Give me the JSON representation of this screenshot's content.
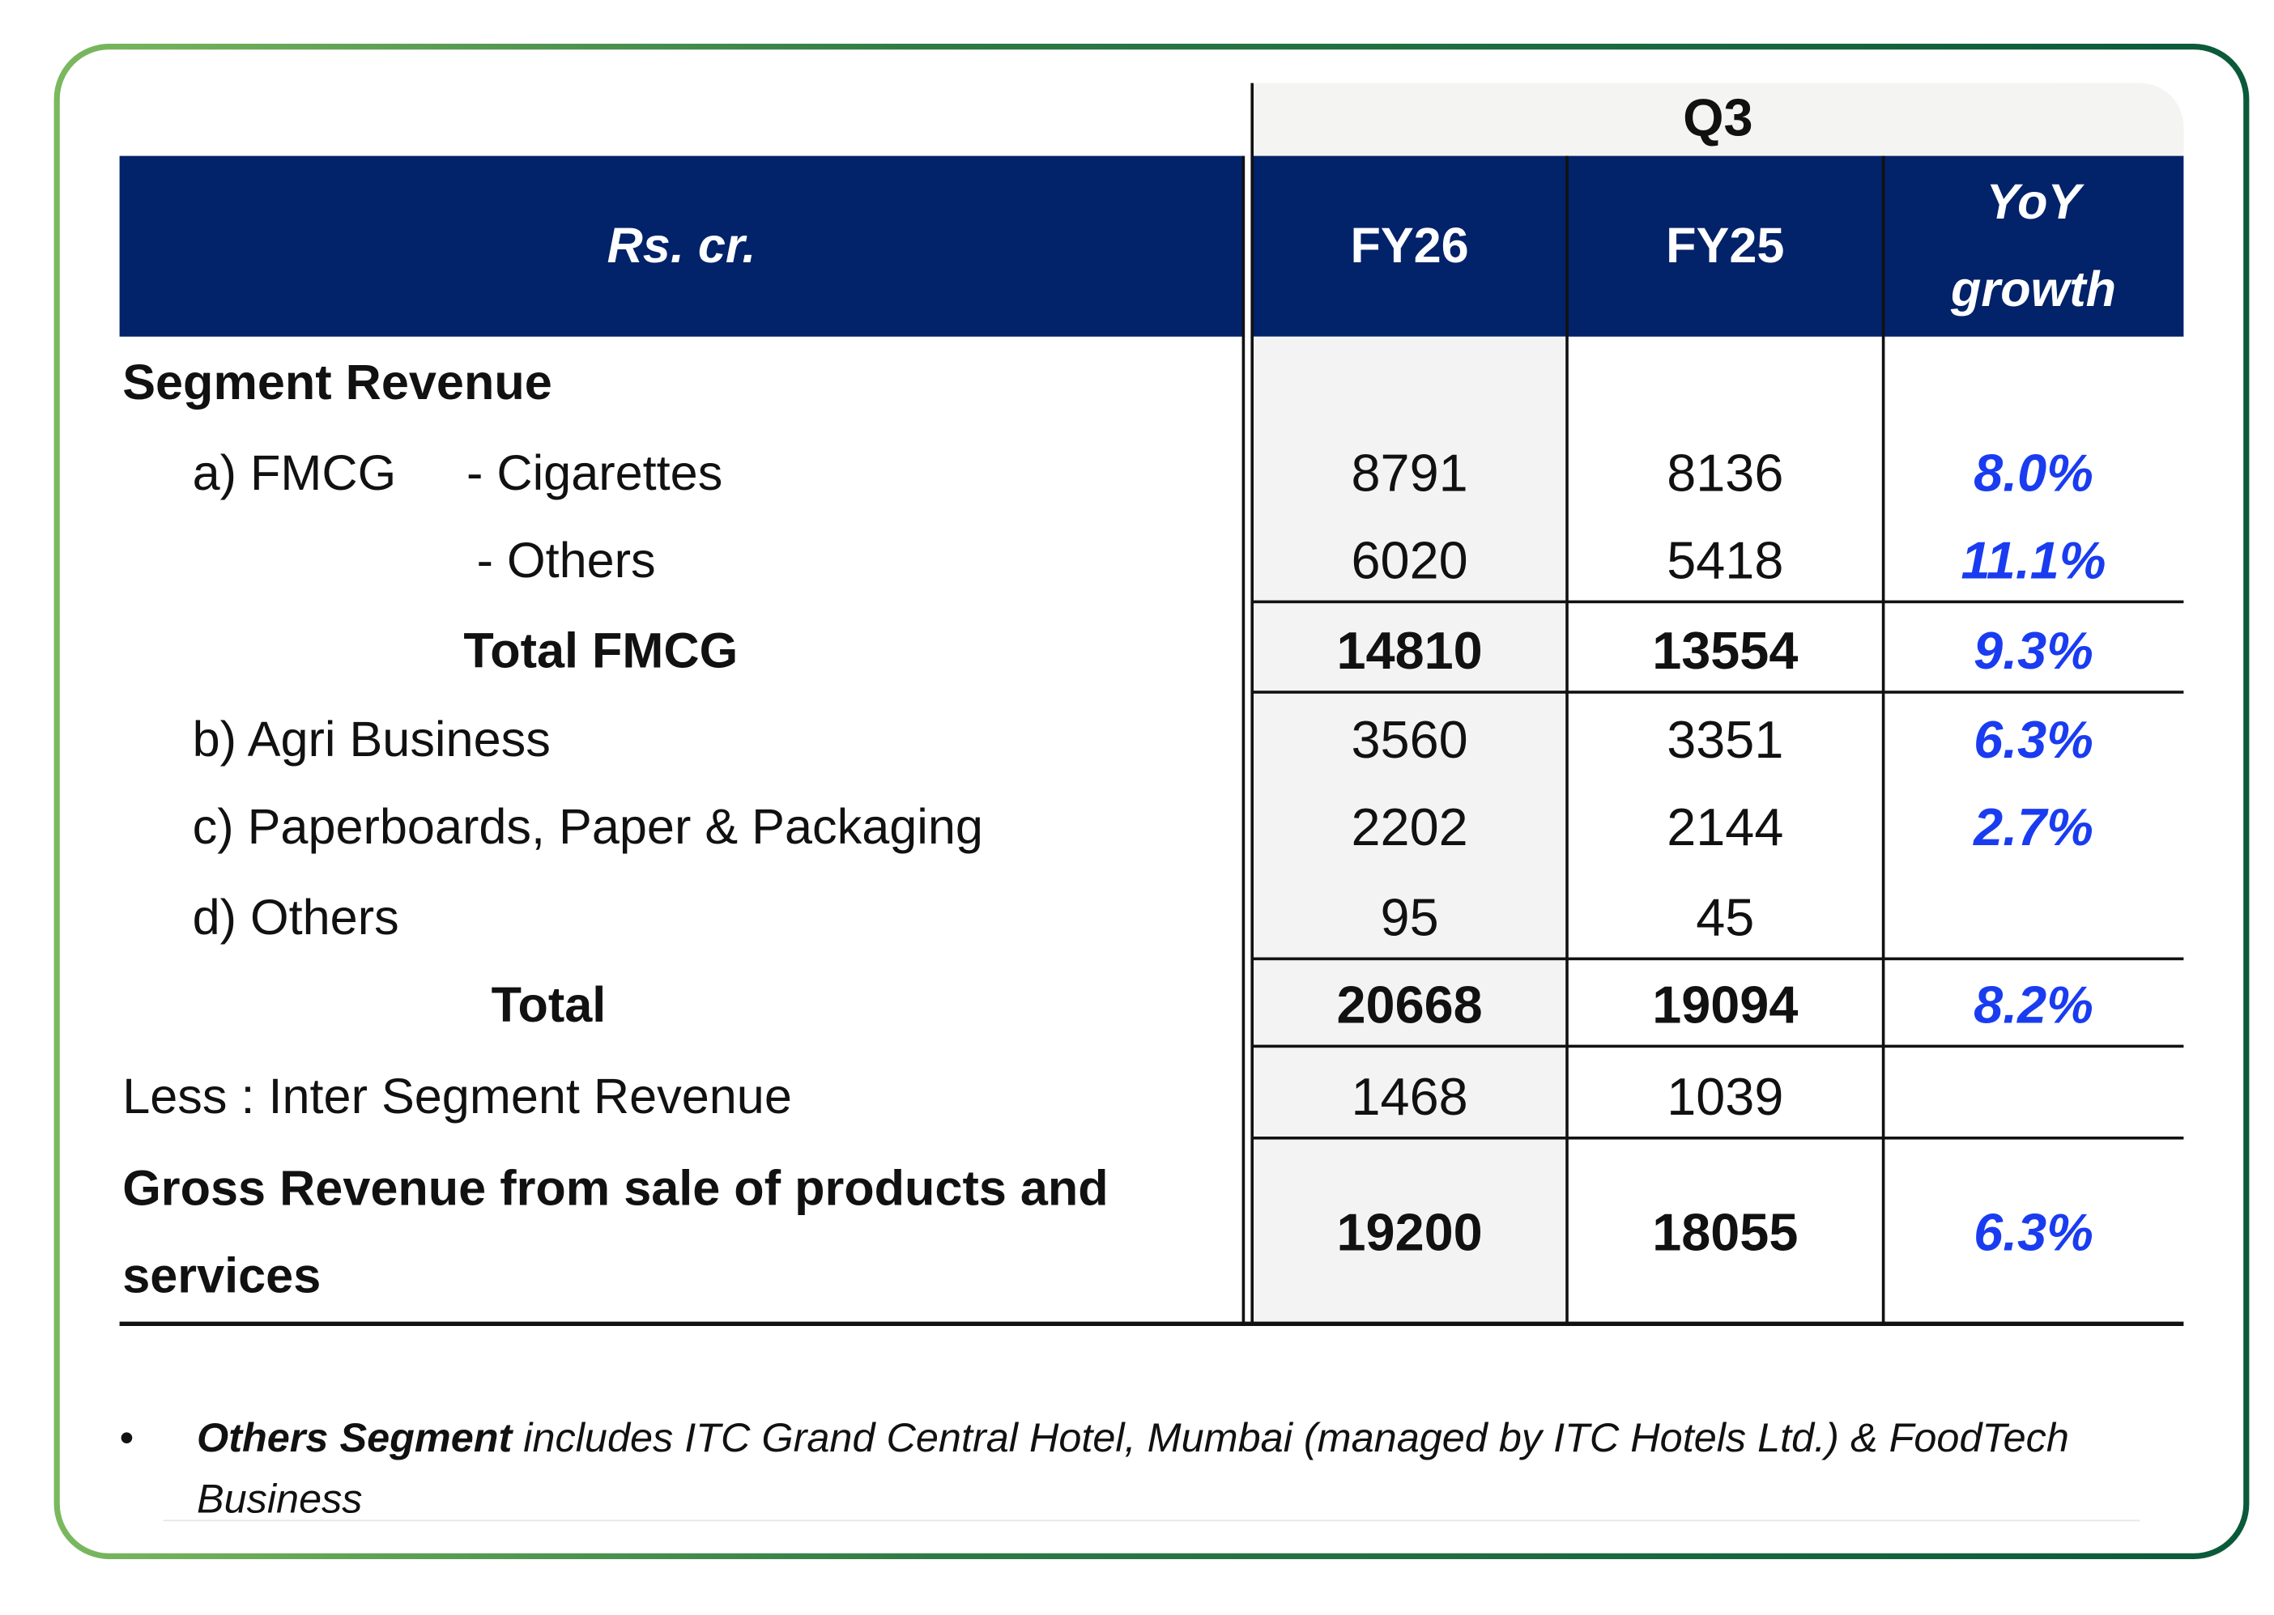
{
  "header": {
    "unit": "Rs. cr.",
    "period": "Q3",
    "col_fy26": "FY26",
    "col_fy25": "FY25",
    "col_yoy_line1": "YoY",
    "col_yoy_line2": "growth"
  },
  "rows": {
    "segment_revenue": {
      "label": "Segment Revenue"
    },
    "fmcg_prefix": "a) FMCG",
    "cigarettes": {
      "label": "- Cigarettes",
      "fy26": "8791",
      "fy25": "8136",
      "yoy": "8.0%"
    },
    "fmcg_others": {
      "label": "- Others",
      "fy26": "6020",
      "fy25": "5418",
      "yoy": "11.1%"
    },
    "total_fmcg": {
      "label": "Total FMCG",
      "fy26": "14810",
      "fy25": "13554",
      "yoy": "9.3%"
    },
    "agri": {
      "label": "b) Agri Business",
      "fy26": "3560",
      "fy25": "3351",
      "yoy": "6.3%"
    },
    "paper": {
      "label": "c) Paperboards, Paper & Packaging",
      "fy26": "2202",
      "fy25": "2144",
      "yoy": "2.7%"
    },
    "others": {
      "label": "d) Others",
      "fy26": "95",
      "fy25": "45",
      "yoy": ""
    },
    "total": {
      "label": "Total",
      "fy26": "20668",
      "fy25": "19094",
      "yoy": "8.2%"
    },
    "inter_segment": {
      "label": "Less : Inter Segment Revenue",
      "fy26": "1468",
      "fy25": "1039",
      "yoy": ""
    },
    "gross": {
      "label_line1": "Gross Revenue from sale of products and",
      "label_line2": "services",
      "fy26": "19200",
      "fy25": "18055",
      "yoy": "6.3%"
    }
  },
  "footnote": {
    "bullet": "•",
    "bold": "Others Segment",
    "text": " includes ITC Grand Central Hotel, Mumbai (managed by ITC Hotels Ltd.) & FoodTech Business"
  },
  "colors": {
    "header_bg": "#02226a",
    "growth_text": "#1a3cf0",
    "frame_gradient_start": "#7bb85e",
    "frame_gradient_end": "#0a5a3a"
  }
}
